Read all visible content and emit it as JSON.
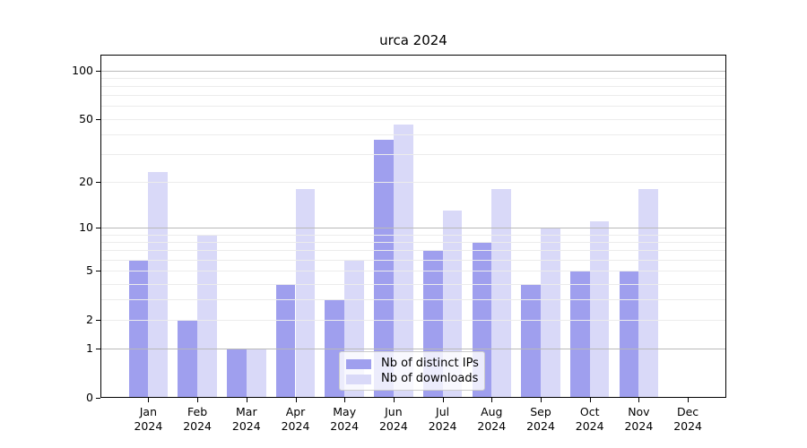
{
  "chart_data": {
    "type": "bar",
    "title": "urca 2024",
    "categories": [
      "Jan",
      "Feb",
      "Mar",
      "Apr",
      "May",
      "Jun",
      "Jul",
      "Aug",
      "Sep",
      "Oct",
      "Nov",
      "Dec"
    ],
    "category_year": "2024",
    "series": [
      {
        "name": "Nb of distinct IPs",
        "color": "#9f9fee",
        "values": [
          6,
          2,
          1,
          4,
          3,
          37,
          7,
          8,
          4,
          5,
          5,
          0
        ]
      },
      {
        "name": "Nb of downloads",
        "color": "#d9d9f8",
        "values": [
          23,
          9,
          1,
          18,
          6,
          46,
          13,
          18,
          10,
          11,
          18,
          0
        ]
      }
    ],
    "y_axis": {
      "scale": "log1p",
      "ylim": [
        0,
        125
      ],
      "tick_labels": [
        0,
        1,
        2,
        5,
        10,
        20,
        50,
        100
      ],
      "major_gridlines": [
        1,
        10,
        100
      ],
      "minor_gridlines": [
        2,
        3,
        4,
        5,
        6,
        7,
        8,
        9,
        20,
        30,
        40,
        50,
        60,
        70,
        80,
        90
      ]
    },
    "xlabel": "",
    "ylabel": "",
    "grid": true,
    "legend": {
      "position": "lower center",
      "entries": [
        "Nb of distinct IPs",
        "Nb of downloads"
      ]
    },
    "colors": {
      "bar_ips": "#9f9fee",
      "bar_downloads": "#d9d9f8",
      "grid_major": "#b9b9b9",
      "grid_minor": "#ececec",
      "axis": "#000000"
    }
  }
}
